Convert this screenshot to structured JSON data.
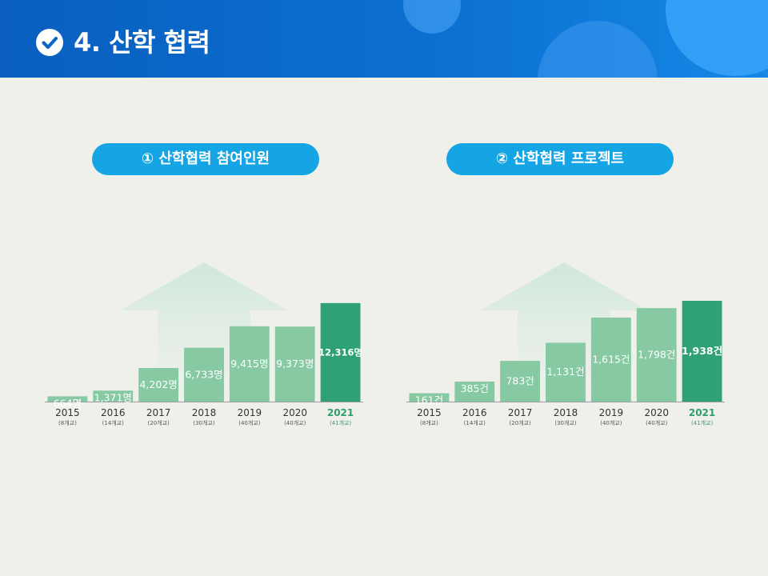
{
  "header": {
    "title": "4. 산학 협력",
    "icon": "check-circle-icon"
  },
  "colors": {
    "header_blue": "#0b6fd0",
    "pill_blue": "#16a5e4",
    "bar_light": "#86c9a3",
    "bar_highlight": "#2fa174",
    "highlight_text": "#2f9e6c"
  },
  "chart_data": [
    {
      "type": "bar",
      "title": "① 산학협력 참여인원",
      "categories": [
        "2015",
        "2016",
        "2017",
        "2018",
        "2019",
        "2020",
        "2021"
      ],
      "sublabels": [
        "(8개교)",
        "(14개교)",
        "(20개교)",
        "(30개교)",
        "(40개교)",
        "(40개교)",
        "(41개교)"
      ],
      "values": [
        664,
        1371,
        4202,
        6733,
        9415,
        9373,
        12316
      ],
      "value_labels": [
        "664명",
        "1,371명",
        "4,202명",
        "6,733명",
        "9,415명",
        "9,373명",
        "12,316명"
      ],
      "highlight_index": 6,
      "ylim": [
        0,
        13000
      ]
    },
    {
      "type": "bar",
      "title": "② 산학협력 프로젝트",
      "categories": [
        "2015",
        "2016",
        "2017",
        "2018",
        "2019",
        "2020",
        "2021"
      ],
      "sublabels": [
        "(8개교)",
        "(14개교)",
        "(20개교)",
        "(30개교)",
        "(40개교)",
        "(40개교)",
        "(41개교)"
      ],
      "values": [
        161,
        385,
        783,
        1131,
        1615,
        1798,
        1938
      ],
      "value_labels": [
        "161건",
        "385건",
        "783건",
        "1,131건",
        "1,615건",
        "1,798건",
        "1,938건"
      ],
      "highlight_index": 6,
      "ylim": [
        0,
        2000
      ]
    }
  ]
}
